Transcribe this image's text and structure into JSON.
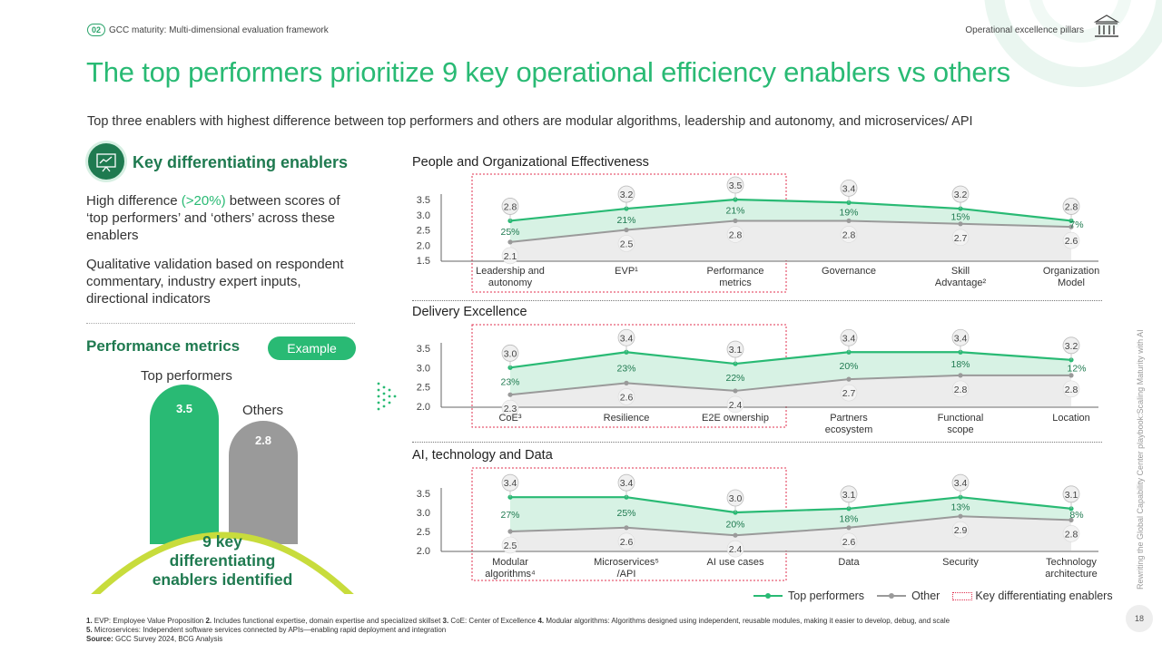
{
  "header": {
    "section_number": "02",
    "breadcrumb": "GCC maturity: Multi-dimensional evaluation framework",
    "pillar_label": "Operational excellence pillars"
  },
  "title": "The top performers prioritize 9 key operational efficiency enablers vs others",
  "subtitle": "Top three enablers with highest difference between top performers and others are modular algorithms, leadership and autonomy, and microservices/ API",
  "left_panel": {
    "kde_title": "Key differentiating enablers",
    "desc1_part1": "High difference ",
    "desc1_highlight": "(>20%)",
    "desc1_part2": " between scores of ‘top performers’ and ‘others’ across these enablers",
    "desc2": "Qualitative validation based on respondent commentary, industry expert inputs, directional indicators",
    "pm_title": "Performance metrics",
    "example_label": "Example",
    "top_label": "Top performers",
    "others_label": "Others",
    "top_value": "3.5",
    "others_value": "2.8",
    "enablers_line1": "9 key",
    "enablers_line2": "differentiating",
    "enablers_line3": "enablers identified"
  },
  "chart_data": [
    {
      "type": "line",
      "title": "People and Organizational Effectiveness",
      "categories": [
        "Leadership and autonomy",
        "EVP¹",
        "Performance metrics",
        "Governance",
        "Skill Advantage²",
        "Organization Model"
      ],
      "series": [
        {
          "name": "Top performers",
          "values": [
            2.8,
            3.2,
            3.5,
            3.4,
            3.2,
            2.8
          ]
        },
        {
          "name": "Other",
          "values": [
            2.1,
            2.5,
            2.8,
            2.8,
            2.7,
            2.6
          ]
        }
      ],
      "differences": [
        "25%",
        "21%",
        "21%",
        "19%",
        "15%",
        "7%"
      ],
      "ylim": [
        1.5,
        3.5
      ],
      "yticks": [
        "3.5",
        "3.0",
        "2.5",
        "2.0",
        "1.5"
      ],
      "highlight_range": [
        0,
        2
      ],
      "highlight_label": "Key differentiating enablers"
    },
    {
      "type": "line",
      "title": "Delivery Excellence",
      "categories": [
        "CoE³",
        "Resilience",
        "E2E ownership",
        "Partners ecosystem",
        "Functional scope",
        "Location"
      ],
      "series": [
        {
          "name": "Top performers",
          "values": [
            3.0,
            3.4,
            3.1,
            3.4,
            3.4,
            3.2
          ]
        },
        {
          "name": "Other",
          "values": [
            2.3,
            2.6,
            2.4,
            2.7,
            2.8,
            2.8
          ]
        }
      ],
      "differences": [
        "23%",
        "23%",
        "22%",
        "20%",
        "18%",
        "12%"
      ],
      "ylim": [
        2.0,
        3.5
      ],
      "yticks": [
        "3.5",
        "3.0",
        "2.5",
        "2.0"
      ],
      "highlight_range": [
        0,
        2
      ],
      "highlight_label": "Key differentiating enablers"
    },
    {
      "type": "line",
      "title": "AI, technology and Data",
      "categories": [
        "Modular algorithms⁴",
        "Microservices⁵ /API",
        "AI use cases",
        "Data",
        "Security",
        "Technology architecture"
      ],
      "series": [
        {
          "name": "Top performers",
          "values": [
            3.4,
            3.4,
            3.0,
            3.1,
            3.4,
            3.1
          ]
        },
        {
          "name": "Other",
          "values": [
            2.5,
            2.6,
            2.4,
            2.6,
            2.9,
            2.8
          ]
        }
      ],
      "differences": [
        "27%",
        "25%",
        "20%",
        "18%",
        "13%",
        "8%"
      ],
      "ylim": [
        2.0,
        3.5
      ],
      "yticks": [
        "3.5",
        "3.0",
        "2.5",
        "2.0"
      ],
      "highlight_range": [
        0,
        2
      ],
      "highlight_label": "Key differentiating enablers"
    }
  ],
  "legend": {
    "top": "Top performers",
    "other": "Other",
    "key": "Key differentiating enablers"
  },
  "colors": {
    "green": "#29ba74",
    "dark_green": "#1f7a50",
    "grey": "#9a9a9a",
    "key_red": "#e0304f",
    "light_green_fill": "#d7f2e4",
    "light_grey_fill": "#ececec"
  },
  "footnotes": {
    "n1": "1.",
    "t1": " EVP: Employee Value Proposition ",
    "n2": "2.",
    "t2": " Includes functional expertise, domain expertise and specialized skillset ",
    "n3": "3.",
    "t3": " CoE: Center of Excellence ",
    "n4": "4.",
    "t4": " Modular algorithms: Algorithms designed using independent, reusable modules, making it easier to develop, debug, and scale",
    "n5": "5.",
    "t5": " Microservices: Independent software services connected by APIs—enabling rapid deployment and integration",
    "source_label": "Source:",
    "source_text": " GCC Survey 2024, BCG Analysis"
  },
  "side_text": "Rewriting the Global Capability Center playbook:Scaling Maturity with AI",
  "page_number": "18"
}
